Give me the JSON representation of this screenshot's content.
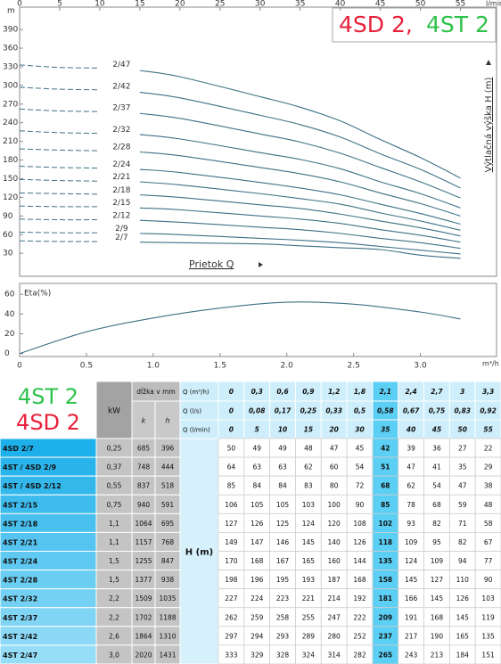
{
  "chart_data": [
    {
      "type": "line",
      "title_red": "4SD 2,",
      "title_green": "4ST 2",
      "x_unit": "l/min",
      "y_unit": "m",
      "y_label": "Výtlačná výška H (m)",
      "x_label": "Prietok Q",
      "x": [
        0,
        5,
        10,
        15,
        20,
        30,
        35,
        40,
        45,
        50,
        55
      ],
      "xlim": [
        0,
        59.5
      ],
      "xticks": [
        0,
        5,
        10,
        15,
        20,
        25,
        30,
        35,
        40,
        45,
        50,
        55
      ],
      "ylim": [
        -7,
        426
      ],
      "yticks": [
        30,
        60,
        90,
        120,
        150,
        180,
        210,
        240,
        270,
        300,
        330,
        360,
        390
      ],
      "color": "#3d7186",
      "series": [
        {
          "name": "2/7",
          "values": [
            50,
            49,
            49,
            48,
            47,
            45,
            42,
            39,
            36,
            27,
            22
          ]
        },
        {
          "name": "2/9",
          "values": [
            64,
            63,
            63,
            62,
            60,
            54,
            51,
            47,
            41,
            35,
            29
          ]
        },
        {
          "name": "2/12",
          "values": [
            85,
            84,
            84,
            83,
            80,
            72,
            68,
            62,
            54,
            47,
            38
          ]
        },
        {
          "name": "2/15",
          "values": [
            106,
            105,
            105,
            103,
            100,
            90,
            85,
            78,
            68,
            59,
            48
          ]
        },
        {
          "name": "2/18",
          "values": [
            127,
            126,
            125,
            124,
            120,
            108,
            102,
            93,
            82,
            71,
            58
          ]
        },
        {
          "name": "2/21",
          "values": [
            149,
            147,
            146,
            145,
            140,
            126,
            118,
            109,
            95,
            82,
            67
          ]
        },
        {
          "name": "2/24",
          "values": [
            170,
            168,
            167,
            165,
            160,
            144,
            135,
            124,
            109,
            94,
            77
          ]
        },
        {
          "name": "2/28",
          "values": [
            198,
            196,
            195,
            193,
            187,
            168,
            158,
            145,
            127,
            110,
            90
          ]
        },
        {
          "name": "2/32",
          "values": [
            227,
            224,
            223,
            221,
            214,
            192,
            181,
            166,
            145,
            126,
            103
          ]
        },
        {
          "name": "2/37",
          "values": [
            262,
            259,
            258,
            255,
            247,
            222,
            209,
            191,
            168,
            145,
            119
          ]
        },
        {
          "name": "2/42",
          "values": [
            297,
            294,
            293,
            289,
            280,
            252,
            237,
            217,
            190,
            165,
            135
          ]
        },
        {
          "name": "2/47",
          "values": [
            333,
            329,
            328,
            324,
            314,
            282,
            265,
            243,
            213,
            184,
            151
          ]
        }
      ]
    },
    {
      "type": "line",
      "y_label": "Eta(%)",
      "x_unit": "m³/h",
      "x": [
        0,
        0.5,
        1,
        1.5,
        2,
        2.5,
        3,
        3.3
      ],
      "values": [
        0,
        22,
        36,
        46,
        52,
        50,
        42,
        35
      ],
      "xlim": [
        0,
        3.57
      ],
      "xticks": [
        0,
        0.5,
        {
          "value": 1,
          "label": "1.0"
        },
        1.5,
        {
          "value": 2,
          "label": "2.0"
        },
        2.5,
        {
          "value": 3,
          "label": "3.0"
        }
      ],
      "ylim": [
        -3,
        71
      ],
      "yticks": [
        0,
        20,
        40,
        60
      ],
      "color": "#3d7186"
    }
  ],
  "table": {
    "logo_green": "4ST 2",
    "logo_red": "4SD 2",
    "kw": "kW",
    "length": "dĺžka v mm",
    "k": "k",
    "h": "h",
    "head": "H (m)",
    "q_labels": [
      "Q (m³/h)",
      "Q (l/s)",
      "Q (l/min)"
    ],
    "m3h": [
      "0",
      "0,3",
      "0,6",
      "0,9",
      "1,2",
      "1,8",
      "2,1",
      "2,4",
      "2,7",
      "3",
      "3,3"
    ],
    "ls": [
      "0",
      "0,08",
      "0,17",
      "0,25",
      "0,33",
      "0,5",
      "0,58",
      "0,67",
      "0,75",
      "0,83",
      "0,92"
    ],
    "rows": [
      {
        "model": "4SD 2/7",
        "kw": "0,25",
        "k": 685,
        "h": 396
      },
      {
        "model": "4ST / 4SD 2/9",
        "kw": "0,37",
        "k": 748,
        "h": 444
      },
      {
        "model": "4ST / 4SD 2/12",
        "kw": "0,55",
        "k": 837,
        "h": 518
      },
      {
        "model": "4ST 2/15",
        "kw": "0,75",
        "k": 940,
        "h": 591
      },
      {
        "model": "4ST 2/18",
        "kw": "1,1",
        "k": 1064,
        "h": 695
      },
      {
        "model": "4ST 2/21",
        "kw": "1,1",
        "k": 1157,
        "h": 768
      },
      {
        "model": "4ST 2/24",
        "kw": "1,5",
        "k": 1255,
        "h": 847
      },
      {
        "model": "4ST 2/28",
        "kw": "1,5",
        "k": 1377,
        "h": 938
      },
      {
        "model": "4ST 2/32",
        "kw": "2,2",
        "k": 1509,
        "h": 1035
      },
      {
        "model": "4ST 2/37",
        "kw": "2,2",
        "k": 1702,
        "h": 1188
      },
      {
        "model": "4ST 2/42",
        "kw": "2,6",
        "k": 1864,
        "h": 1310
      },
      {
        "model": "4ST 2/47",
        "kw": "3,0",
        "k": 2020,
        "h": 1431
      }
    ]
  }
}
